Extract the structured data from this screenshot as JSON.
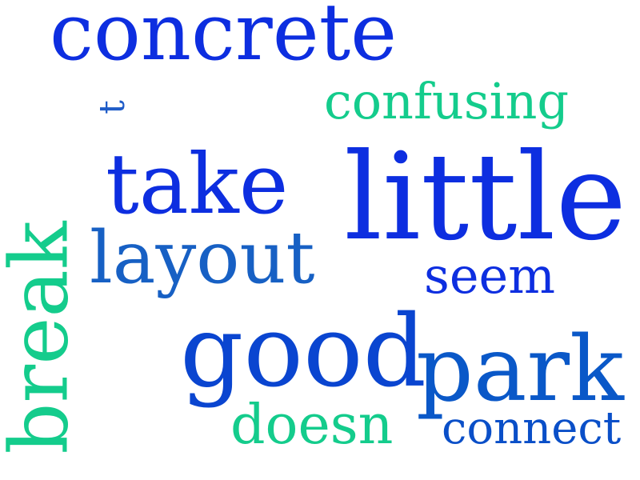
{
  "words": [
    {
      "key": "concrete",
      "text": "concrete",
      "color": "#0d2ee0",
      "rotated": false
    },
    {
      "key": "confusing",
      "text": "confusing",
      "color": "#14cc8c",
      "rotated": false
    },
    {
      "key": "t",
      "text": "t",
      "color": "#1f5cc8",
      "rotated": true
    },
    {
      "key": "take",
      "text": "take",
      "color": "#0d2ee0",
      "rotated": false
    },
    {
      "key": "little",
      "text": "little",
      "color": "#0d2ee0",
      "rotated": false
    },
    {
      "key": "break",
      "text": "break",
      "color": "#14cc8c",
      "rotated": true
    },
    {
      "key": "layout",
      "text": "layout",
      "color": "#1760c4",
      "rotated": false
    },
    {
      "key": "seem",
      "text": "seem",
      "color": "#0d2ee0",
      "rotated": false
    },
    {
      "key": "good",
      "text": "good",
      "color": "#0a45d0",
      "rotated": false
    },
    {
      "key": "park",
      "text": "park",
      "color": "#0a58c8",
      "rotated": false
    },
    {
      "key": "doesn",
      "text": "doesn",
      "color": "#14cc8c",
      "rotated": false
    },
    {
      "key": "connect",
      "text": "connect",
      "color": "#0a4fc8",
      "rotated": false
    }
  ]
}
